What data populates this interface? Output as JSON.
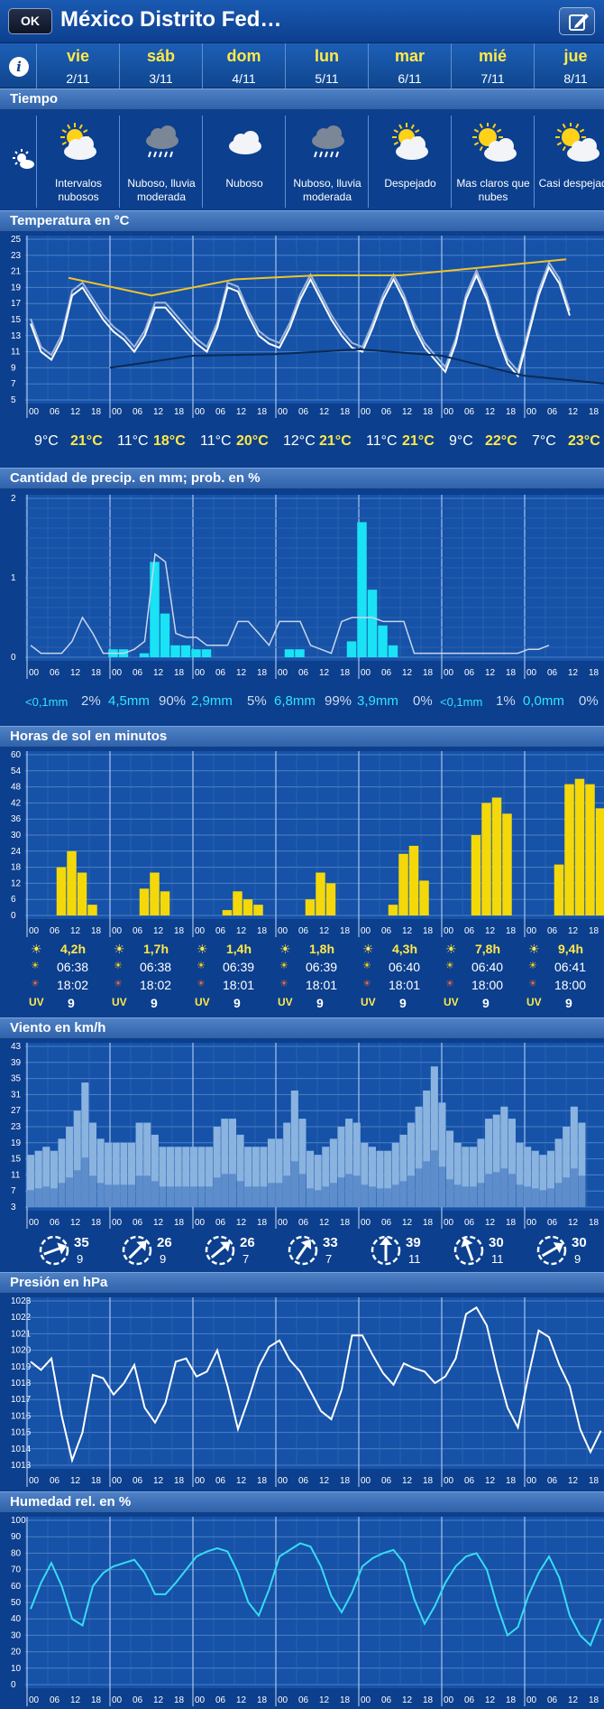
{
  "header": {
    "ok_label": "OK",
    "title": "México Distrito Fed…",
    "edit_icon": "edit-icon",
    "info_icon": "i"
  },
  "days": [
    {
      "name": "vie",
      "date": "2/11"
    },
    {
      "name": "sáb",
      "date": "3/11"
    },
    {
      "name": "dom",
      "date": "4/11"
    },
    {
      "name": "lun",
      "date": "5/11"
    },
    {
      "name": "mar",
      "date": "6/11"
    },
    {
      "name": "mié",
      "date": "7/11"
    },
    {
      "name": "jue",
      "date": "8/11"
    }
  ],
  "weather": {
    "title": "Tiempo",
    "items": [
      {
        "icon": "partly-cloudy-icon",
        "text": "Intervalos nubosos"
      },
      {
        "icon": "rain-cloud-icon",
        "text": "Nuboso, lluvia moderada"
      },
      {
        "icon": "cloud-icon",
        "text": "Nuboso"
      },
      {
        "icon": "rain-cloud-icon",
        "text": "Nuboso, lluvia moderada"
      },
      {
        "icon": "partly-cloudy-icon",
        "text": "Despejado"
      },
      {
        "icon": "sun-cloud-icon",
        "text": "Mas claros que nubes"
      },
      {
        "icon": "sun-cloud-icon",
        "text": "Casi despejado"
      }
    ]
  },
  "hour_labels": [
    "00",
    "06",
    "12",
    "18"
  ],
  "temperature": {
    "title": "Temperatura en °C",
    "min": [
      "9°C",
      "11°C",
      "11°C",
      "12°C",
      "11°C",
      "9°C",
      "7°C"
    ],
    "max": [
      "21°C",
      "18°C",
      "20°C",
      "21°C",
      "21°C",
      "22°C",
      "23°C"
    ]
  },
  "precipitation": {
    "title": "Cantidad de precip. en mm; prob. en %",
    "amount": [
      "<0,1mm",
      "4,5mm",
      "2,9mm",
      "6,8mm",
      "3,9mm",
      "<0,1mm",
      "0,0mm"
    ],
    "prob": [
      "2%",
      "90%",
      "5%",
      "99%",
      "0%",
      "1%",
      "0%"
    ]
  },
  "sun": {
    "title": "Horas de sol en minutos",
    "hours": [
      "4,2h",
      "1,7h",
      "1,4h",
      "1,8h",
      "4,3h",
      "7,8h",
      "9,4h"
    ],
    "sunrise": [
      "06:38",
      "06:38",
      "06:39",
      "06:39",
      "06:40",
      "06:40",
      "06:41"
    ],
    "sunset": [
      "18:02",
      "18:02",
      "18:01",
      "18:01",
      "18:01",
      "18:00",
      "18:00"
    ],
    "uv_label": "UV",
    "uv": [
      "9",
      "9",
      "9",
      "9",
      "9",
      "9",
      "9"
    ]
  },
  "wind": {
    "title": "Viento en km/h",
    "gust": [
      "35",
      "26",
      "26",
      "33",
      "39",
      "30",
      "30"
    ],
    "speed": [
      "9",
      "9",
      "7",
      "7",
      "11",
      "11",
      "9"
    ]
  },
  "pressure": {
    "title": "Presión en hPa"
  },
  "humidity": {
    "title": "Humedad rel. en %"
  },
  "chart_data": [
    {
      "type": "line",
      "title": "Temperatura en °C",
      "ylim": [
        5,
        25
      ],
      "yticks": [
        5,
        7,
        9,
        11,
        13,
        15,
        17,
        19,
        21,
        23,
        25
      ],
      "x_step_hours": 3,
      "series": [],
      "values_hourly3": [
        14.5,
        11,
        10,
        12.5,
        18,
        19,
        17,
        15,
        13.5,
        12.5,
        11,
        13,
        16.5,
        16.5,
        15,
        13.5,
        12,
        11,
        14,
        19,
        18.5,
        15.5,
        13,
        12,
        11.5,
        14,
        17.5,
        20,
        17.5,
        15,
        13,
        11.5,
        11,
        14,
        17.5,
        20,
        17.5,
        14,
        11.5,
        10,
        8.5,
        12,
        17.5,
        20.5,
        17.5,
        13,
        9.5,
        8,
        13,
        18,
        21.5,
        19.5,
        15.5
      ],
      "trend_max": [
        [
          0.5,
          20.2
        ],
        [
          1.5,
          18
        ],
        [
          2.5,
          20
        ],
        [
          3.5,
          20.5
        ],
        [
          4.5,
          20.5
        ],
        [
          5.5,
          21.5
        ],
        [
          6.5,
          22.5
        ]
      ],
      "trend_min": [
        [
          1,
          9
        ],
        [
          2,
          10.5
        ],
        [
          3,
          10.7
        ],
        [
          4,
          11.3
        ],
        [
          5,
          10.5
        ],
        [
          6,
          8
        ],
        [
          7,
          7
        ]
      ]
    },
    {
      "type": "bar",
      "title": "Cantidad de precip. en mm; prob. en %",
      "ylim": [
        0,
        2
      ],
      "yticks": [
        0,
        1,
        2
      ],
      "bars_mm": [
        0,
        0,
        0,
        0,
        0,
        0,
        0,
        0,
        0.1,
        0.1,
        0,
        0.05,
        1.2,
        0.55,
        0.15,
        0.15,
        0.1,
        0.1,
        0,
        0,
        0,
        0,
        0,
        0,
        0,
        0.1,
        0.1,
        0,
        0,
        0,
        0,
        0.2,
        1.7,
        0.85,
        0.4,
        0.15,
        0,
        0,
        0,
        0,
        0,
        0,
        0,
        0,
        0,
        0,
        0,
        0,
        0,
        0,
        0,
        0,
        0,
        0,
        0,
        0
      ],
      "prob_line": [
        0.15,
        0.05,
        0.05,
        0.05,
        0.2,
        0.5,
        0.3,
        0.05,
        0.05,
        0.05,
        0.1,
        0.2,
        1.3,
        1.2,
        0.3,
        0.25,
        0.25,
        0.15,
        0.15,
        0.15,
        0.45,
        0.45,
        0.3,
        0.15,
        0.45,
        0.45,
        0.45,
        0.15,
        0.1,
        0.05,
        0.45,
        0.5,
        0.5,
        0.5,
        0.45,
        0.45,
        0.45,
        0.05,
        0.05,
        0.05,
        0.05,
        0.05,
        0.05,
        0.05,
        0.05,
        0.05,
        0.05,
        0.05,
        0.1,
        0.1,
        0.15
      ]
    },
    {
      "type": "bar",
      "title": "Horas de sol en minutos",
      "ylim": [
        0,
        60
      ],
      "yticks": [
        0,
        6,
        12,
        18,
        24,
        30,
        36,
        42,
        48,
        54,
        60
      ],
      "values_hourly3": [
        0,
        0,
        0,
        18,
        24,
        16,
        4,
        0,
        0,
        0,
        0,
        10,
        16,
        9,
        0,
        0,
        0,
        0,
        0,
        2,
        9,
        6,
        4,
        0,
        0,
        0,
        0,
        6,
        16,
        12,
        0,
        0,
        0,
        0,
        0,
        4,
        23,
        26,
        13,
        0,
        0,
        0,
        0,
        30,
        42,
        44,
        38,
        0,
        0,
        0,
        0,
        19,
        49,
        51,
        49,
        40
      ]
    },
    {
      "type": "area",
      "title": "Viento en km/h",
      "ylim": [
        3,
        43
      ],
      "yticks": [
        3,
        7,
        11,
        15,
        19,
        23,
        27,
        31,
        35,
        39,
        43
      ],
      "gusts": [
        16,
        17,
        18,
        17,
        20,
        23,
        27,
        34,
        24,
        20,
        19,
        19,
        19,
        19,
        24,
        24,
        21,
        18,
        18,
        18,
        18,
        18,
        18,
        18,
        23,
        25,
        25,
        21,
        18,
        18,
        18,
        20,
        20,
        24,
        32,
        25,
        17,
        16,
        18,
        20,
        23,
        25,
        24,
        19,
        18,
        17,
        17,
        19,
        21,
        24,
        28,
        32,
        38,
        29,
        22,
        19,
        18,
        18,
        20,
        25,
        26,
        28,
        25,
        19,
        18,
        17,
        16,
        17,
        20,
        23,
        28,
        24
      ]
    },
    {
      "type": "line",
      "title": "Presión en hPa",
      "ylim": [
        1013,
        1023
      ],
      "yticks": [
        1013,
        1014,
        1015,
        1016,
        1017,
        1018,
        1019,
        1020,
        1021,
        1022,
        1023
      ],
      "values_hourly3": [
        1019.3,
        1018.8,
        1019.5,
        1016,
        1013.3,
        1015,
        1018.5,
        1018.3,
        1017.3,
        1018,
        1019.1,
        1016.5,
        1015.6,
        1016.8,
        1019.3,
        1019.5,
        1018.4,
        1018.7,
        1020,
        1017.8,
        1015.2,
        1017,
        1019,
        1020.2,
        1020.6,
        1019.4,
        1018.7,
        1017.5,
        1016.3,
        1015.8,
        1017.6,
        1020.9,
        1020.9,
        1019.7,
        1018.6,
        1017.9,
        1019.2,
        1018.9,
        1018.7,
        1018,
        1018.4,
        1019.5,
        1022.2,
        1022.6,
        1021.5,
        1018.8,
        1016.5,
        1015.3,
        1018.4,
        1021.2,
        1020.8,
        1019.1,
        1017.8,
        1015.2,
        1013.8,
        1015.1
      ]
    },
    {
      "type": "line",
      "title": "Humedad rel. en %",
      "ylim": [
        0,
        100
      ],
      "yticks": [
        0,
        10,
        20,
        30,
        40,
        50,
        60,
        70,
        80,
        90,
        100
      ],
      "values_hourly3": [
        46,
        62,
        74,
        60,
        40,
        36,
        60,
        68,
        72,
        74,
        76,
        68,
        55,
        55,
        62,
        70,
        78,
        81,
        83,
        81,
        68,
        50,
        42,
        58,
        78,
        82,
        86,
        84,
        72,
        54,
        44,
        56,
        72,
        77,
        80,
        82,
        74,
        52,
        37,
        48,
        62,
        72,
        78,
        80,
        70,
        48,
        30,
        35,
        54,
        68,
        78,
        65,
        42,
        30,
        24,
        40
      ]
    }
  ]
}
